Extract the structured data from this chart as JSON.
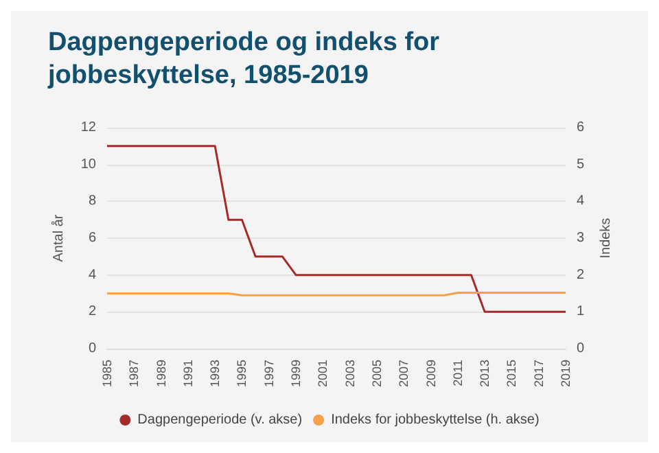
{
  "chart_data": {
    "type": "line",
    "title": "Dagpengeperiode og indeks for jobbeskyttelse, 1985-2019",
    "ylabel": "Antal år",
    "y2label": "Indeks",
    "categories": [
      "1985",
      null,
      "1987",
      null,
      "1989",
      null,
      "1991",
      null,
      "1993",
      null,
      "1995",
      null,
      "1997",
      null,
      "1999",
      null,
      "2001",
      null,
      "2003",
      null,
      "2005",
      null,
      "2007",
      null,
      "2009",
      null,
      "2011",
      null,
      "2013",
      null,
      "2015",
      null,
      "2017",
      null,
      "2019"
    ],
    "series": [
      {
        "name": "Dagpengeperiode (v. akse)",
        "color": "#a52a2a",
        "values": [
          11,
          11,
          11,
          11,
          11,
          11,
          11,
          11,
          11,
          7,
          7,
          5,
          5,
          5,
          4,
          4,
          4,
          4,
          4,
          4,
          4,
          4,
          4,
          4,
          4,
          4,
          4,
          4,
          2,
          2,
          2,
          2,
          2,
          2,
          2
        ]
      },
      {
        "name": "Indeks for jobbeskyttelse (h. akse)",
        "color": "#f5a04a",
        "axis": "y2",
        "values": [
          1.5,
          1.5,
          1.5,
          1.5,
          1.5,
          1.5,
          1.5,
          1.5,
          1.5,
          1.5,
          1.45,
          1.45,
          1.45,
          1.45,
          1.45,
          1.45,
          1.45,
          1.45,
          1.45,
          1.45,
          1.45,
          1.45,
          1.45,
          1.45,
          1.45,
          1.45,
          1.52,
          1.52,
          1.52,
          1.52,
          1.52,
          1.52,
          1.52,
          1.52,
          1.52
        ]
      }
    ],
    "ylim": [
      0,
      12
    ],
    "yticks": [
      0,
      2,
      4,
      6,
      8,
      10,
      12
    ],
    "y2lim": [
      0,
      6
    ],
    "y2ticks": [
      0,
      1,
      2,
      3,
      4,
      5,
      6
    ],
    "grid": "y",
    "legend": "bottom",
    "marker": "none",
    "line_style": "solid"
  }
}
